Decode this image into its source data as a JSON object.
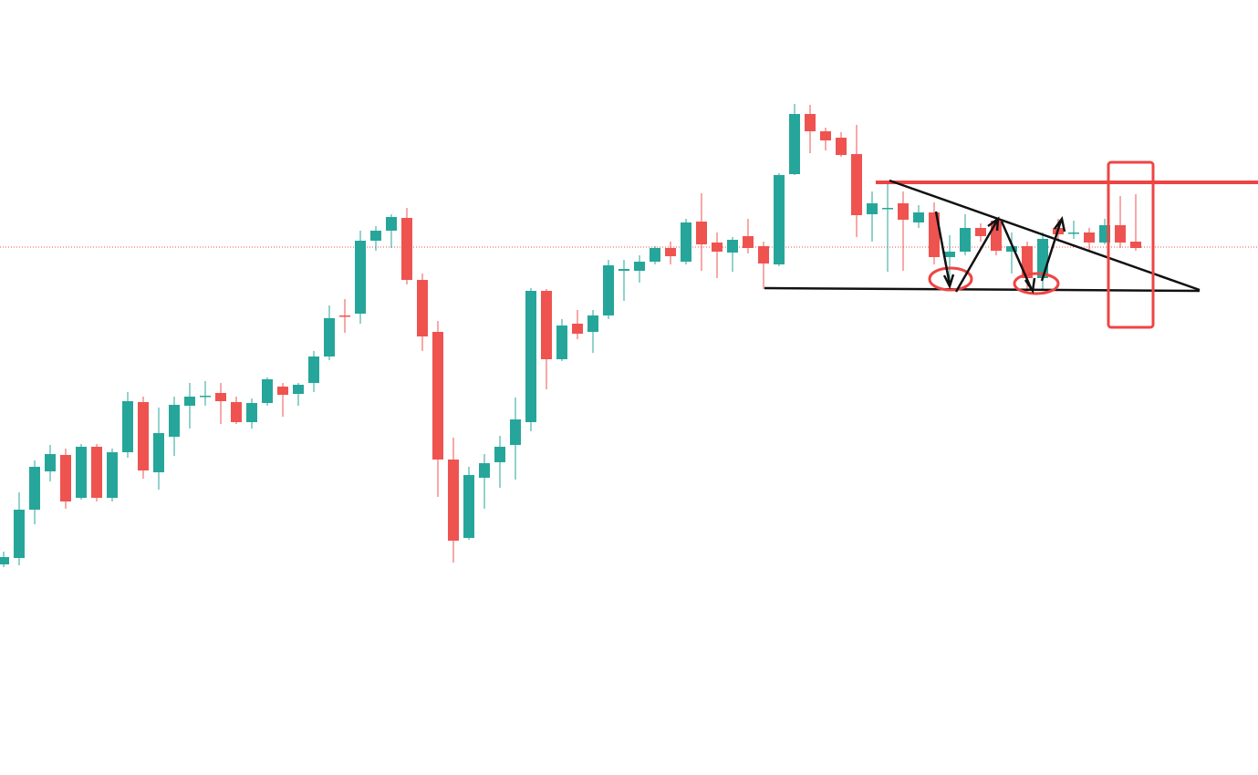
{
  "chart_data": {
    "type": "candlestick",
    "up_color": "#26a69a",
    "down_color": "#ef5350",
    "ylim": [
      0,
      850
    ],
    "open": [
      231,
      238,
      291,
      333,
      351,
      304,
      360,
      304,
      354,
      409,
      332,
      371,
      405,
      416,
      419,
      409,
      387,
      408,
      426,
      418,
      430,
      459,
      504,
      506,
      586,
      597,
      611,
      543,
      486,
      346,
      260,
      326,
      343,
      362,
      387,
      531,
      456,
      495,
      486,
      504,
      553,
      553,
      563,
      578,
      563,
      607,
      584,
      573,
      591,
      580,
      560,
      659,
      725,
      706,
      699,
      681,
      615,
      621,
      627,
      606,
      617,
      568,
      574,
      600,
      608,
      574,
      580,
      545,
      600,
      594,
      595,
      584,
      603,
      585
    ],
    "high": [
      245,
      310,
      345,
      362,
      358,
      363,
      363,
      358,
      420,
      415,
      403,
      415,
      430,
      432,
      430,
      415,
      413,
      436,
      430,
      430,
      465,
      515,
      522,
      597,
      602,
      615,
      622,
      550,
      498,
      370,
      338,
      352,
      372,
      414,
      534,
      533,
      500,
      510,
      510,
      565,
      565,
      570,
      580,
      585,
      610,
      638,
      595,
      590,
      610,
      585,
      660,
      736,
      735,
      710,
      705,
      713,
      640,
      652,
      640,
      625,
      628,
      592,
      615,
      605,
      612,
      595,
      585,
      595,
      610,
      608,
      600,
      610,
      635,
      637
    ],
    "low": [
      228,
      230,
      275,
      322,
      292,
      302,
      300,
      300,
      348,
      325,
      313,
      350,
      380,
      405,
      385,
      385,
      380,
      405,
      393,
      405,
      420,
      455,
      485,
      495,
      575,
      578,
      538,
      465,
      305,
      233,
      258,
      292,
      315,
      324,
      377,
      423,
      454,
      478,
      463,
      500,
      520,
      540,
      560,
      560,
      560,
      553,
      545,
      552,
      572,
      533,
      558,
      658,
      682,
      685,
      678,
      590,
      585,
      552,
      553,
      600,
      560,
      538,
      570,
      585,
      570,
      550,
      530,
      532,
      585,
      588,
      575,
      582,
      578,
      575
    ],
    "close": [
      239,
      291,
      338,
      352,
      300,
      360,
      304,
      354,
      410,
      334,
      375,
      406,
      415,
      416,
      410,
      387,
      408,
      434,
      417,
      428,
      459,
      501,
      503,
      586,
      597,
      612,
      543,
      481,
      346,
      257,
      329,
      342,
      360,
      390,
      531,
      456,
      493,
      484,
      504,
      559,
      555,
      563,
      578,
      569,
      606,
      582,
      574,
      587,
      578,
      561,
      658,
      725,
      706,
      696,
      680,
      614,
      627,
      622,
      609,
      617,
      568,
      574,
      600,
      591,
      575,
      580,
      545,
      588,
      593,
      595,
      584,
      603,
      584,
      578
    ]
  }
}
